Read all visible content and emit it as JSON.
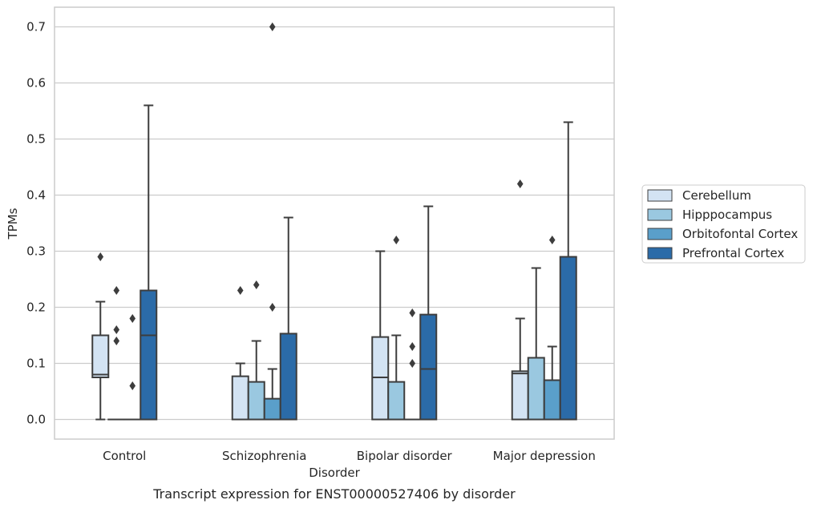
{
  "chart_data": {
    "type": "boxplot",
    "title": "",
    "xlabel": "Disorder",
    "ylabel": "TPMs",
    "caption": "Transcript expression for ENST00000527406 by disorder",
    "ylim": [
      -0.035,
      0.735
    ],
    "yticks": [
      0.0,
      0.1,
      0.2,
      0.3,
      0.4,
      0.5,
      0.6,
      0.7
    ],
    "ytick_labels": [
      "0.0",
      "0.1",
      "0.2",
      "0.3",
      "0.4",
      "0.5",
      "0.6",
      "0.7"
    ],
    "grid": true,
    "legend_position": "right-center",
    "categories": [
      "Control",
      "Schizophrenia",
      "Bipolar disorder",
      "Major depression"
    ],
    "series": [
      {
        "name": "Cerebellum",
        "color": "#d3e3f3",
        "boxes": [
          {
            "q1": 0.075,
            "median": 0.08,
            "q3": 0.15,
            "whisker_low": 0.0,
            "whisker_high": 0.21,
            "outliers": [
              0.29
            ]
          },
          {
            "q1": 0.0,
            "median": 0.0,
            "q3": 0.077,
            "whisker_low": 0.0,
            "whisker_high": 0.1,
            "outliers": [
              0.23
            ]
          },
          {
            "q1": 0.0,
            "median": 0.075,
            "q3": 0.147,
            "whisker_low": 0.0,
            "whisker_high": 0.3,
            "outliers": []
          },
          {
            "q1": 0.0,
            "median": 0.082,
            "q3": 0.086,
            "whisker_low": 0.0,
            "whisker_high": 0.18,
            "outliers": [
              0.42
            ]
          }
        ]
      },
      {
        "name": "Hipppocampus",
        "color": "#9ac8e0",
        "boxes": [
          {
            "q1": 0.0,
            "median": 0.0,
            "q3": 0.0,
            "whisker_low": 0.0,
            "whisker_high": 0.0,
            "outliers": [
              0.14,
              0.16,
              0.23
            ]
          },
          {
            "q1": 0.0,
            "median": 0.0,
            "q3": 0.067,
            "whisker_low": 0.0,
            "whisker_high": 0.14,
            "outliers": [
              0.24
            ]
          },
          {
            "q1": 0.0,
            "median": 0.0,
            "q3": 0.067,
            "whisker_low": 0.0,
            "whisker_high": 0.15,
            "outliers": [
              0.32
            ]
          },
          {
            "q1": 0.0,
            "median": 0.0,
            "q3": 0.11,
            "whisker_low": 0.0,
            "whisker_high": 0.27,
            "outliers": []
          }
        ]
      },
      {
        "name": "Orbitofontal Cortex",
        "color": "#5a9fca",
        "boxes": [
          {
            "q1": 0.0,
            "median": 0.0,
            "q3": 0.0,
            "whisker_low": 0.0,
            "whisker_high": 0.0,
            "outliers": [
              0.06,
              0.18
            ]
          },
          {
            "q1": 0.0,
            "median": 0.0,
            "q3": 0.037,
            "whisker_low": 0.0,
            "whisker_high": 0.09,
            "outliers": [
              0.2,
              0.7
            ]
          },
          {
            "q1": 0.0,
            "median": 0.0,
            "q3": 0.0,
            "whisker_low": 0.0,
            "whisker_high": 0.0,
            "outliers": [
              0.1,
              0.13,
              0.19
            ]
          },
          {
            "q1": 0.0,
            "median": 0.0,
            "q3": 0.07,
            "whisker_low": 0.0,
            "whisker_high": 0.13,
            "outliers": [
              0.32
            ]
          }
        ]
      },
      {
        "name": "Prefrontal Cortex",
        "color": "#2b6ba8",
        "boxes": [
          {
            "q1": 0.0,
            "median": 0.15,
            "q3": 0.23,
            "whisker_low": 0.0,
            "whisker_high": 0.56,
            "outliers": []
          },
          {
            "q1": 0.0,
            "median": 0.0,
            "q3": 0.153,
            "whisker_low": 0.0,
            "whisker_high": 0.36,
            "outliers": []
          },
          {
            "q1": 0.0,
            "median": 0.09,
            "q3": 0.187,
            "whisker_low": 0.0,
            "whisker_high": 0.38,
            "outliers": []
          },
          {
            "q1": 0.0,
            "median": 0.0,
            "q3": 0.29,
            "whisker_low": 0.0,
            "whisker_high": 0.53,
            "outliers": []
          }
        ]
      }
    ]
  }
}
